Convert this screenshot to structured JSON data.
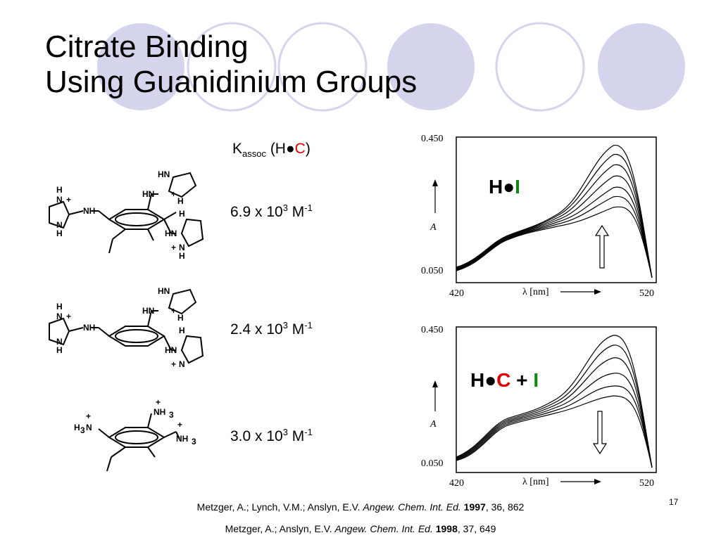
{
  "slide": {
    "title_lines": [
      "Citrate Binding",
      "Using Guanidinium Groups"
    ],
    "number": "17"
  },
  "theme": {
    "circle_fill": "#d4d4ec",
    "circle_stroke": "#d4d4ec",
    "ring_stroke": "#d4d4ec",
    "red": "#e00000",
    "green": "#0a8a0a"
  },
  "kassoc_header": {
    "k": "K",
    "sub": "assoc",
    "open": " (H",
    "dot": "●",
    "guest": "C",
    "close": ")"
  },
  "binding_constants": [
    {
      "mantissa": "6.9 x 10",
      "exponent": "3",
      "unit": " M",
      "unit_exp": "-1"
    },
    {
      "mantissa": "2.4 x 10",
      "exponent": "3",
      "unit": " M",
      "unit_exp": "-1"
    },
    {
      "mantissa": "3.0 x 10",
      "exponent": "3",
      "unit": " M",
      "unit_exp": "-1"
    }
  ],
  "structure_labels": {
    "nh": "NH",
    "hn": "HN",
    "n": "N",
    "h": "H",
    "plus": "+",
    "nh3": "NH",
    "h3n": "H",
    "sub3": "3"
  },
  "spectra": [
    {
      "label_parts": [
        "H",
        "●",
        "I"
      ],
      "ymax": "0.450",
      "ymin": "0.050",
      "xmin": "420",
      "xmax": "520",
      "ylabel": "A",
      "xlabel": "λ [nm]",
      "arrow": "up"
    },
    {
      "label_parts": [
        "H",
        "●",
        "C",
        " + ",
        "I"
      ],
      "ymax": "0.450",
      "ymin": "0.050",
      "xmin": "420",
      "xmax": "520",
      "ylabel": "A",
      "xlabel": "λ [nm]",
      "arrow": "down"
    }
  ],
  "references": [
    {
      "authors": "Metzger, A.; Lynch, V.M.; Anslyn, E.V. ",
      "journal": "Angew. Chem. Int. Ed.",
      "year": " 1997",
      "rest": ", 36, 862"
    },
    {
      "authors": "Metzger, A.; Anslyn, E.V. ",
      "journal": "Angew. Chem. Int. Ed.",
      "year": " 1998",
      "rest": ", 37, 649"
    }
  ]
}
